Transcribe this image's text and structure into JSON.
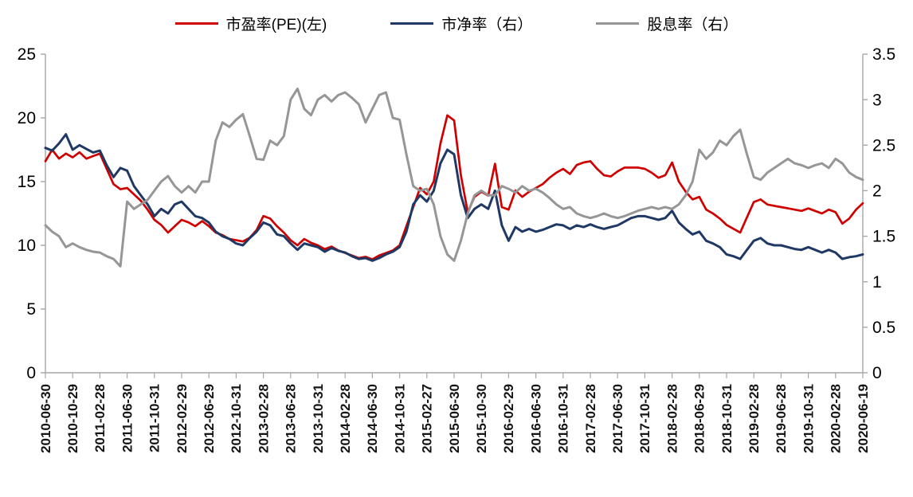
{
  "chart_data": {
    "type": "line",
    "title": "",
    "grid": false,
    "legend_position": "top",
    "axis_color": "#a6a6a6",
    "n_points": 121,
    "points_per_tick": 4,
    "x_tick_labels": [
      "2010-06-30",
      "2010-10-29",
      "2011-02-28",
      "2011-06-30",
      "2011-10-31",
      "2012-02-29",
      "2012-06-29",
      "2012-10-31",
      "2013-02-28",
      "2013-06-28",
      "2013-10-31",
      "2014-02-28",
      "2014-06-30",
      "2014-10-31",
      "2015-02-27",
      "2015-06-30",
      "2015-10-30",
      "2016-02-29",
      "2016-06-30",
      "2016-10-31",
      "2017-02-28",
      "2017-06-30",
      "2017-10-31",
      "2018-02-28",
      "2018-06-29",
      "2018-10-31",
      "2019-02-28",
      "2019-06-28",
      "2019-10-31",
      "2020-02-28",
      "2020-06-19"
    ],
    "left_axis": {
      "min": 0,
      "max": 25,
      "ticks": [
        25,
        20,
        15,
        10,
        5,
        0
      ],
      "tick_labels": [
        "25",
        "20",
        "15",
        "10",
        "5",
        "0"
      ]
    },
    "right_axis": {
      "min": 0,
      "max": 3.5,
      "ticks": [
        3.5,
        3,
        2.5,
        2,
        1.5,
        1,
        0.5,
        0
      ],
      "tick_labels": [
        "3.5",
        "3",
        "2.5",
        "2",
        "1.5",
        "1",
        "0.5",
        "0"
      ]
    },
    "series": [
      {
        "name": "市盈率(PE)(左)",
        "axis": "left",
        "color": "#cf0000",
        "width": 2.7,
        "values": [
          16.6,
          17.5,
          16.8,
          17.2,
          16.9,
          17.3,
          16.8,
          17.0,
          17.2,
          16.0,
          14.8,
          14.4,
          14.5,
          14.0,
          13.5,
          12.8,
          12.0,
          11.6,
          11.0,
          11.5,
          12.0,
          11.8,
          11.5,
          11.9,
          11.5,
          11.0,
          10.8,
          10.5,
          10.4,
          10.3,
          10.6,
          11.2,
          12.3,
          12.1,
          11.5,
          11.0,
          10.4,
          10.0,
          10.5,
          10.2,
          10.0,
          9.7,
          9.9,
          9.6,
          9.4,
          9.2,
          9.0,
          9.1,
          8.9,
          9.2,
          9.4,
          9.6,
          10.0,
          11.5,
          13.0,
          14.5,
          14.0,
          15.0,
          18.0,
          20.2,
          19.8,
          15.5,
          12.6,
          13.8,
          14.2,
          13.9,
          16.4,
          13.0,
          12.8,
          14.3,
          13.8,
          14.2,
          14.5,
          14.8,
          15.3,
          15.7,
          16.0,
          15.6,
          16.3,
          16.5,
          16.6,
          16.0,
          15.5,
          15.4,
          15.8,
          16.1,
          16.1,
          16.1,
          16.0,
          15.7,
          15.3,
          15.5,
          16.5,
          15.0,
          14.2,
          13.6,
          13.8,
          12.8,
          12.5,
          12.1,
          11.6,
          11.3,
          11.0,
          12.2,
          13.4,
          13.6,
          13.2,
          13.1,
          13.0,
          12.9,
          12.8,
          12.7,
          12.9,
          12.7,
          12.5,
          12.8,
          12.6,
          11.7,
          12.1,
          12.8,
          13.3
        ]
      },
      {
        "name": "市净率（右）",
        "axis": "right",
        "color": "#1f3864",
        "width": 3,
        "values": [
          2.47,
          2.44,
          2.52,
          2.62,
          2.45,
          2.5,
          2.46,
          2.42,
          2.44,
          2.28,
          2.15,
          2.25,
          2.22,
          2.05,
          1.95,
          1.85,
          1.72,
          1.8,
          1.75,
          1.85,
          1.88,
          1.8,
          1.72,
          1.7,
          1.65,
          1.55,
          1.5,
          1.47,
          1.42,
          1.4,
          1.48,
          1.55,
          1.65,
          1.62,
          1.52,
          1.5,
          1.42,
          1.35,
          1.42,
          1.4,
          1.38,
          1.33,
          1.37,
          1.34,
          1.32,
          1.28,
          1.25,
          1.26,
          1.23,
          1.26,
          1.3,
          1.33,
          1.38,
          1.55,
          1.85,
          1.95,
          1.88,
          2.0,
          2.3,
          2.45,
          2.4,
          1.95,
          1.7,
          1.8,
          1.85,
          1.8,
          2.0,
          1.62,
          1.45,
          1.6,
          1.55,
          1.58,
          1.55,
          1.57,
          1.6,
          1.63,
          1.62,
          1.58,
          1.62,
          1.6,
          1.63,
          1.6,
          1.58,
          1.6,
          1.62,
          1.66,
          1.7,
          1.72,
          1.72,
          1.7,
          1.68,
          1.7,
          1.78,
          1.65,
          1.58,
          1.52,
          1.55,
          1.45,
          1.42,
          1.38,
          1.3,
          1.28,
          1.25,
          1.35,
          1.45,
          1.48,
          1.42,
          1.4,
          1.4,
          1.38,
          1.36,
          1.35,
          1.38,
          1.35,
          1.32,
          1.35,
          1.32,
          1.25,
          1.27,
          1.28,
          1.3
        ]
      },
      {
        "name": "股息率（右）",
        "axis": "right",
        "color": "#969696",
        "width": 3,
        "values": [
          1.62,
          1.55,
          1.5,
          1.38,
          1.42,
          1.38,
          1.35,
          1.33,
          1.32,
          1.28,
          1.25,
          1.17,
          1.88,
          1.8,
          1.85,
          1.9,
          2.0,
          2.1,
          2.16,
          2.05,
          1.98,
          2.05,
          1.98,
          2.1,
          2.1,
          2.55,
          2.75,
          2.7,
          2.78,
          2.84,
          2.6,
          2.35,
          2.34,
          2.55,
          2.5,
          2.6,
          3.0,
          3.12,
          2.9,
          2.83,
          3.0,
          3.05,
          2.98,
          3.05,
          3.08,
          3.02,
          2.95,
          2.75,
          2.9,
          3.05,
          3.08,
          2.8,
          2.78,
          2.4,
          2.05,
          2.0,
          2.02,
          1.85,
          1.5,
          1.3,
          1.23,
          1.45,
          1.75,
          1.95,
          2.0,
          1.95,
          1.95,
          2.05,
          2.02,
          1.98,
          2.05,
          2.0,
          2.02,
          1.98,
          1.92,
          1.85,
          1.8,
          1.82,
          1.75,
          1.72,
          1.7,
          1.72,
          1.75,
          1.72,
          1.7,
          1.72,
          1.75,
          1.78,
          1.8,
          1.82,
          1.8,
          1.82,
          1.8,
          1.85,
          1.95,
          2.1,
          2.45,
          2.35,
          2.42,
          2.55,
          2.5,
          2.6,
          2.67,
          2.4,
          2.15,
          2.12,
          2.2,
          2.25,
          2.3,
          2.35,
          2.3,
          2.28,
          2.25,
          2.28,
          2.3,
          2.25,
          2.35,
          2.3,
          2.2,
          2.15,
          2.12
        ]
      }
    ]
  }
}
